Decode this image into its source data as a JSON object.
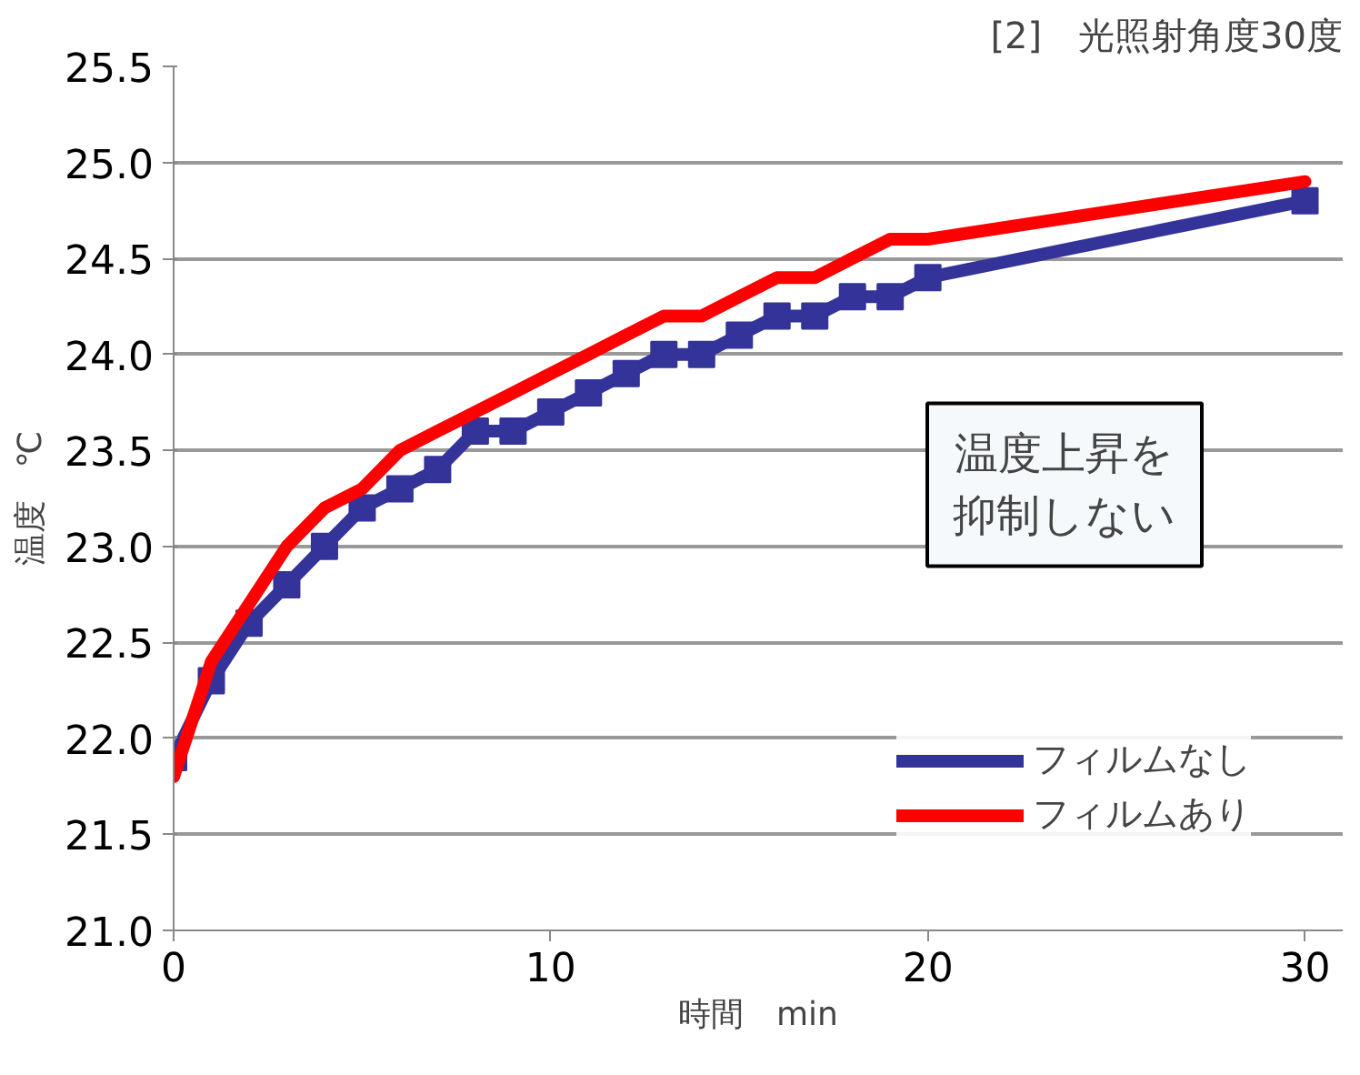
{
  "chart_data": {
    "type": "line",
    "title": "[2]　光照射角度30度",
    "xlabel": "時間　min",
    "ylabel": "温度　℃",
    "xlim": [
      0,
      31
    ],
    "xticks": [
      0,
      10,
      20,
      30
    ],
    "ylim": [
      21.0,
      25.5
    ],
    "yticks": [
      {
        "value": 21.0,
        "label": "21.0"
      },
      {
        "value": 21.5,
        "label": "21.5"
      },
      {
        "value": 22.0,
        "label": "22.0"
      },
      {
        "value": 22.5,
        "label": "22.5"
      },
      {
        "value": 23.0,
        "label": "23.0"
      },
      {
        "value": 23.5,
        "label": "23.5"
      },
      {
        "value": 24.0,
        "label": "24.0"
      },
      {
        "value": 24.5,
        "label": "24.5"
      },
      {
        "value": 25.0,
        "label": "25.0"
      },
      {
        "value": 25.5,
        "label": "25.5"
      }
    ],
    "grid": "y",
    "legend": "bottom right",
    "line_style": "solid",
    "annotations": [
      "温度上昇を",
      "抑制しない"
    ],
    "series": [
      {
        "name": "フィルムなし",
        "color": "#333399",
        "marker": "square",
        "x": [
          0,
          1,
          2,
          3,
          4,
          5,
          6,
          7,
          8,
          9,
          10,
          11,
          12,
          13,
          14,
          15,
          16,
          17,
          18,
          19,
          20,
          30
        ],
        "values": [
          21.9,
          22.3,
          22.6,
          22.8,
          23.0,
          23.2,
          23.3,
          23.4,
          23.6,
          23.6,
          23.7,
          23.8,
          23.9,
          24.0,
          24.0,
          24.1,
          24.2,
          24.2,
          24.3,
          24.3,
          24.4,
          24.8
        ]
      },
      {
        "name": "フィルムあり",
        "color": "#ff0000",
        "marker": "none",
        "x": [
          0,
          1,
          2,
          3,
          4,
          5,
          6,
          7,
          8,
          9,
          10,
          11,
          12,
          13,
          14,
          15,
          16,
          17,
          18,
          19,
          20,
          30
        ],
        "values": [
          21.8,
          22.4,
          22.7,
          23.0,
          23.2,
          23.3,
          23.5,
          23.6,
          23.7,
          23.8,
          23.9,
          24.0,
          24.1,
          24.2,
          24.2,
          24.3,
          24.4,
          24.4,
          24.5,
          24.6,
          24.6,
          24.9
        ]
      }
    ]
  }
}
